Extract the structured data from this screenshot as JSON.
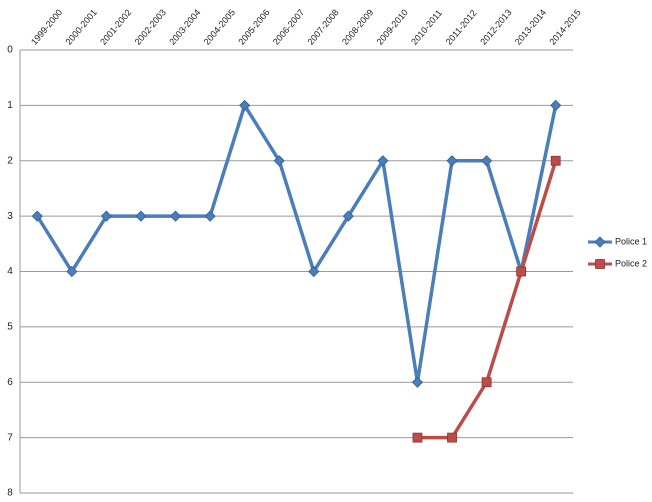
{
  "chart_data": {
    "type": "line",
    "categories": [
      "1999-2000",
      "2000-2001",
      "2001-2002",
      "2002-2003",
      "2003-2004",
      "2004-2005",
      "2005-2006",
      "2006-2007",
      "2007-2008",
      "2008-2009",
      "2009-2010",
      "2010-2011",
      "2011-2012",
      "2012-2013",
      "2013-2014",
      "2014-2015"
    ],
    "series": [
      {
        "name": "Police 1",
        "color": "#4a7ebb",
        "marker": "diamond",
        "values": [
          3,
          4,
          3,
          3,
          3,
          3,
          1,
          2,
          4,
          3,
          2,
          6,
          2,
          2,
          4,
          1
        ]
      },
      {
        "name": "Police 2",
        "color": "#be4b48",
        "marker": "square",
        "values": [
          null,
          null,
          null,
          null,
          null,
          null,
          null,
          null,
          null,
          null,
          null,
          7,
          7,
          6,
          4,
          2
        ]
      }
    ],
    "ylim": [
      0,
      8
    ],
    "yticks": [
      0,
      1,
      2,
      3,
      4,
      5,
      6,
      7,
      8
    ],
    "y_inverted": true,
    "grid": true,
    "legend": "right"
  }
}
